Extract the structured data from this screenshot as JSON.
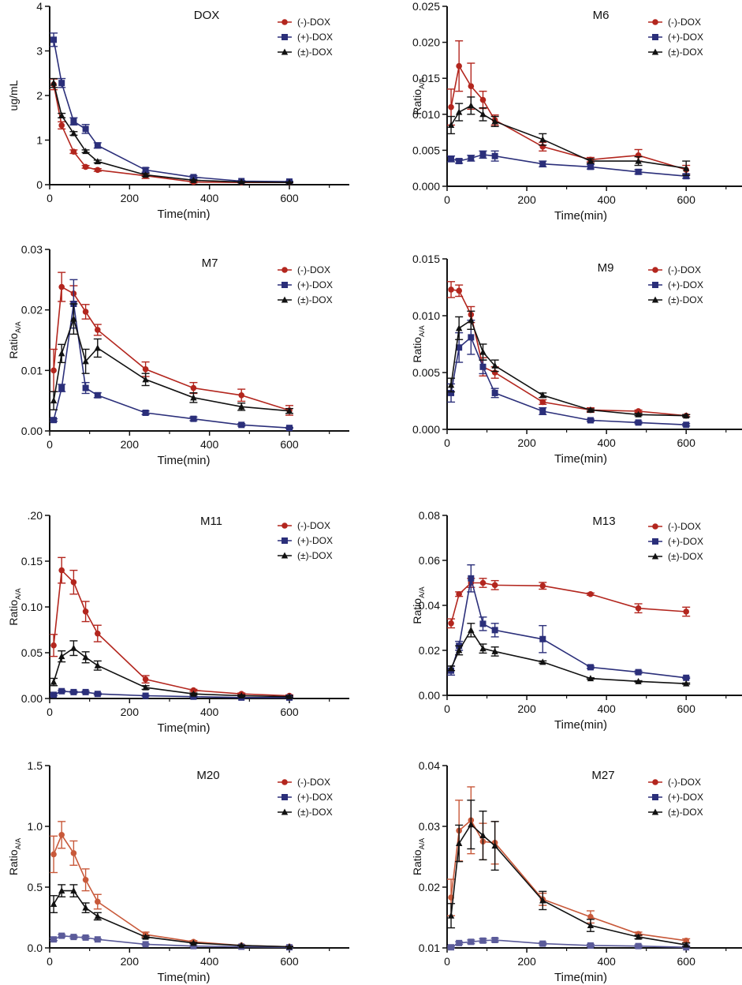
{
  "legend": [
    "(-)-DOX",
    "(+)-DOX",
    "(±)-DOX"
  ],
  "colors": {
    "minus": "#b3261e",
    "plus": "#2b2f7a",
    "racemic": "#111111",
    "minus_light": "#c8593a",
    "plus_light": "#5b5b9a"
  },
  "chart_data": [
    {
      "type": "line",
      "title": "DOX",
      "xlabel": "Time(min)",
      "ylabel": "ug/mL",
      "xlim": [
        0,
        750
      ],
      "ylim": [
        0,
        4
      ],
      "xticks": [
        "0",
        "200",
        "400",
        "600"
      ],
      "yticks": [
        "0",
        "1",
        "2",
        "3",
        "4"
      ],
      "x": [
        10,
        30,
        60,
        90,
        120,
        240,
        360,
        480,
        600
      ],
      "series": [
        {
          "name": "(-)-DOX",
          "values": [
            2.25,
            1.33,
            0.74,
            0.4,
            0.33,
            0.2,
            0.06,
            0.05,
            0.05
          ],
          "err": [
            0.12,
            0.08,
            0.04,
            0.03,
            0.03,
            0.06,
            0.02,
            0.01,
            0.01
          ]
        },
        {
          "name": "(+)-DOX",
          "values": [
            3.25,
            2.28,
            1.42,
            1.25,
            0.88,
            0.33,
            0.17,
            0.08,
            0.07
          ],
          "err": [
            0.15,
            0.1,
            0.08,
            0.1,
            0.06,
            0.05,
            0.03,
            0.01,
            0.01
          ]
        },
        {
          "name": "(±)-DOX",
          "values": [
            2.28,
            1.55,
            1.15,
            0.75,
            0.52,
            0.22,
            0.1,
            0.06,
            0.05
          ],
          "err": [
            0.1,
            0.05,
            0.04,
            0.03,
            0.03,
            0.03,
            0.01,
            0.01,
            0.01
          ]
        }
      ]
    },
    {
      "type": "line",
      "title": "M6",
      "xlabel": "Time(min)",
      "ylabel": "Ratio",
      "ylabel_sub": "A/A",
      "xlim": [
        0,
        750
      ],
      "ylim": [
        0,
        0.025
      ],
      "xticks": [
        "0",
        "200",
        "400",
        "600"
      ],
      "yticks": [
        "0.000",
        "0.005",
        "0.010",
        "0.015",
        "0.020",
        "0.025"
      ],
      "x": [
        10,
        30,
        60,
        90,
        120,
        240,
        360,
        480,
        600
      ],
      "series": [
        {
          "name": "(-)-DOX",
          "values": [
            0.011,
            0.0167,
            0.0139,
            0.012,
            0.0092,
            0.0055,
            0.0037,
            0.0043,
            0.0023
          ],
          "err": [
            0.0025,
            0.0035,
            0.0032,
            0.0012,
            0.0007,
            0.0006,
            0.0003,
            0.0008,
            0.0006
          ]
        },
        {
          "name": "(+)-DOX",
          "values": [
            0.0038,
            0.0035,
            0.0039,
            0.0044,
            0.0042,
            0.0031,
            0.0027,
            0.002,
            0.0014
          ],
          "err": [
            0.0004,
            0.0003,
            0.0004,
            0.0005,
            0.0007,
            0.0004,
            0.0003,
            0.0003,
            0.0003
          ]
        },
        {
          "name": "(±)-DOX",
          "values": [
            0.0085,
            0.0103,
            0.0112,
            0.01,
            0.009,
            0.0065,
            0.0035,
            0.0035,
            0.0025
          ],
          "err": [
            0.0012,
            0.0012,
            0.0012,
            0.0009,
            0.0007,
            0.0008,
            0.0003,
            0.0006,
            0.001
          ]
        }
      ]
    },
    {
      "type": "line",
      "title": "M7",
      "xlabel": "Time(min)",
      "ylabel": "Ratio",
      "ylabel_sub": "A/A",
      "xlim": [
        0,
        750
      ],
      "ylim": [
        0,
        0.03
      ],
      "xticks": [
        "0",
        "200",
        "400",
        "600"
      ],
      "yticks": [
        "0.00",
        "0.01",
        "0.02",
        "0.03"
      ],
      "x": [
        10,
        30,
        60,
        90,
        120,
        240,
        360,
        480,
        600
      ],
      "series": [
        {
          "name": "(-)-DOX",
          "values": [
            0.01,
            0.0238,
            0.0227,
            0.0197,
            0.0167,
            0.0102,
            0.0071,
            0.0059,
            0.0034
          ],
          "err": [
            0.0035,
            0.0024,
            0.0013,
            0.0012,
            0.0009,
            0.0012,
            0.0009,
            0.001,
            0.0008
          ]
        },
        {
          "name": "(+)-DOX",
          "values": [
            0.0018,
            0.0071,
            0.021,
            0.0071,
            0.0059,
            0.003,
            0.002,
            0.001,
            0.0005
          ],
          "err": [
            0.0002,
            0.0006,
            0.004,
            0.0009,
            0.0004,
            0.0003,
            0.0003,
            0.0002,
            0.0001
          ]
        },
        {
          "name": "(±)-DOX",
          "values": [
            0.005,
            0.0128,
            0.0185,
            0.0115,
            0.0137,
            0.0085,
            0.0055,
            0.004,
            0.0033
          ],
          "err": [
            0.0015,
            0.0015,
            0.0025,
            0.002,
            0.0015,
            0.001,
            0.0008,
            0.0006,
            0.0004
          ]
        }
      ]
    },
    {
      "type": "line",
      "title": "M9",
      "xlabel": "Time(min)",
      "ylabel": "Ratio",
      "ylabel_sub": "A/A",
      "xlim": [
        0,
        750
      ],
      "ylim": [
        0,
        0.015
      ],
      "xticks": [
        "0",
        "200",
        "400",
        "600"
      ],
      "yticks": [
        "0.000",
        "0.005",
        "0.010",
        "0.015"
      ],
      "x": [
        10,
        30,
        60,
        90,
        120,
        240,
        360,
        480,
        600
      ],
      "series": [
        {
          "name": "(-)-DOX",
          "values": [
            0.0123,
            0.0122,
            0.0101,
            0.0055,
            0.005,
            0.0024,
            0.0017,
            0.0016,
            0.0012
          ],
          "err": [
            0.0007,
            0.0005,
            0.0007,
            0.0008,
            0.0005,
            0.0002,
            0.0002,
            0.0001,
            0.0001
          ]
        },
        {
          "name": "(+)-DOX",
          "values": [
            0.0032,
            0.0072,
            0.0081,
            0.0055,
            0.0032,
            0.0016,
            0.0008,
            0.0006,
            0.0004
          ],
          "err": [
            0.0008,
            0.0013,
            0.0015,
            0.0006,
            0.0004,
            0.0003,
            0.0001,
            0.0001,
            0.0001
          ]
        },
        {
          "name": "(±)-DOX",
          "values": [
            0.0039,
            0.0089,
            0.0096,
            0.0068,
            0.0056,
            0.003,
            0.0017,
            0.0013,
            0.0012
          ],
          "err": [
            0.0006,
            0.001,
            0.0008,
            0.0007,
            0.0005,
            0.0002,
            0.0001,
            0.0001,
            0.0001
          ]
        }
      ]
    },
    {
      "type": "line",
      "title": "M11",
      "xlabel": "Time(min)",
      "ylabel": "Ratio",
      "ylabel_sub": "A/A",
      "xlim": [
        0,
        750
      ],
      "ylim": [
        0,
        0.2
      ],
      "xticks": [
        "0",
        "200",
        "400",
        "600"
      ],
      "yticks": [
        "0.00",
        "0.05",
        "0.10",
        "0.15",
        ".20"
      ],
      "x": [
        10,
        30,
        60,
        90,
        120,
        240,
        360,
        480,
        600
      ],
      "series": [
        {
          "name": "(-)-DOX",
          "values": [
            0.058,
            0.14,
            0.127,
            0.095,
            0.071,
            0.021,
            0.009,
            0.005,
            0.003
          ],
          "err": [
            0.012,
            0.014,
            0.013,
            0.011,
            0.009,
            0.004,
            0.001,
            0.001,
            0.001
          ]
        },
        {
          "name": "(+)-DOX",
          "values": [
            0.004,
            0.008,
            0.007,
            0.007,
            0.005,
            0.003,
            0.002,
            0.001,
            0.001
          ],
          "err": [
            0.001,
            0.001,
            0.001,
            0.001,
            0.001,
            0.0005,
            0.0005,
            0.0003,
            0.0003
          ]
        },
        {
          "name": "(±)-DOX",
          "values": [
            0.018,
            0.046,
            0.055,
            0.045,
            0.036,
            0.012,
            0.005,
            0.003,
            0.002
          ],
          "err": [
            0.004,
            0.006,
            0.008,
            0.006,
            0.005,
            0.002,
            0.001,
            0.001,
            0.001
          ]
        }
      ]
    },
    {
      "type": "line",
      "title": "M13",
      "xlabel": "Time(min)",
      "ylabel": "Ratio",
      "ylabel_sub": "A/A",
      "xlim": [
        0,
        750
      ],
      "ylim": [
        0,
        0.08
      ],
      "xticks": [
        "0",
        "200",
        "400",
        "600"
      ],
      "yticks": [
        "0.00",
        "0.02",
        "0.04",
        "0.06",
        "0.08"
      ],
      "x": [
        10,
        30,
        60,
        90,
        120,
        240,
        360,
        480,
        600
      ],
      "series": [
        {
          "name": "(-)-DOX",
          "values": [
            0.032,
            0.045,
            0.05,
            0.05,
            0.049,
            0.0487,
            0.045,
            0.0387,
            0.0372
          ],
          "err": [
            0.002,
            0.001,
            0.002,
            0.002,
            0.002,
            0.0015,
            0.0005,
            0.002,
            0.002
          ]
        },
        {
          "name": "(+)-DOX",
          "values": [
            0.011,
            0.022,
            0.052,
            0.0318,
            0.029,
            0.025,
            0.0125,
            0.0103,
            0.0078
          ],
          "err": [
            0.002,
            0.002,
            0.006,
            0.003,
            0.003,
            0.006,
            0.0005,
            0.0005,
            0.0003
          ]
        },
        {
          "name": "(±)-DOX",
          "values": [
            0.012,
            0.02,
            0.029,
            0.0208,
            0.0195,
            0.0148,
            0.0075,
            0.0062,
            0.0052
          ],
          "err": [
            0.001,
            0.002,
            0.003,
            0.002,
            0.002,
            0.0005,
            0.0003,
            0.0003,
            0.0003
          ]
        }
      ]
    },
    {
      "type": "line",
      "title": "M20",
      "xlabel": "Time(min)",
      "ylabel": "Ratio",
      "ylabel_sub": "A/A",
      "xlim": [
        0,
        750
      ],
      "ylim": [
        0,
        1.5
      ],
      "xticks": [
        "0",
        "200",
        "400",
        "600"
      ],
      "yticks": [
        "0.0",
        "0.5",
        "1.0",
        "1.5"
      ],
      "x": [
        10,
        30,
        60,
        90,
        120,
        240,
        360,
        480,
        600
      ],
      "series": [
        {
          "name": "(-)-DOX",
          "values": [
            0.77,
            0.93,
            0.78,
            0.56,
            0.38,
            0.11,
            0.05,
            0.02,
            0.01
          ],
          "err": [
            0.15,
            0.11,
            0.1,
            0.09,
            0.06,
            0.02,
            0.01,
            0.005,
            0.005
          ]
        },
        {
          "name": "(+)-DOX",
          "values": [
            0.07,
            0.1,
            0.09,
            0.085,
            0.07,
            0.03,
            0.015,
            0.01,
            0.005
          ],
          "err": [
            0.01,
            0.01,
            0.01,
            0.01,
            0.005,
            0.005,
            0.003,
            0.002,
            0.002
          ]
        },
        {
          "name": "(±)-DOX",
          "values": [
            0.36,
            0.47,
            0.47,
            0.33,
            0.26,
            0.09,
            0.04,
            0.02,
            0.01
          ],
          "err": [
            0.07,
            0.05,
            0.05,
            0.04,
            0.03,
            0.01,
            0.005,
            0.003,
            0.002
          ]
        }
      ]
    },
    {
      "type": "line",
      "title": "M27",
      "xlabel": "Time(min)",
      "ylabel": "Ratio",
      "ylabel_sub": "A/A",
      "xlim": [
        0,
        750
      ],
      "ylim": [
        0.01,
        0.04
      ],
      "xticks": [
        "0",
        "200",
        "400",
        "600"
      ],
      "yticks": [
        "0.01",
        "0.02",
        "0.03",
        "0.04"
      ],
      "x": [
        10,
        30,
        60,
        90,
        120,
        240,
        360,
        480,
        600
      ],
      "series": [
        {
          "name": "(-)-DOX",
          "values": [
            0.0183,
            0.0293,
            0.031,
            0.0275,
            0.0273,
            0.018,
            0.0151,
            0.0123,
            0.0112
          ],
          "err": [
            0.003,
            0.005,
            0.0055,
            0.003,
            0.0035,
            0.001,
            0.001,
            0.0003,
            0.0003
          ]
        },
        {
          "name": "(+)-DOX",
          "values": [
            0.0101,
            0.0108,
            0.011,
            0.0112,
            0.0113,
            0.0107,
            0.0104,
            0.0103,
            0.0101
          ],
          "err": [
            0.0002,
            0.0002,
            0.0003,
            0.0003,
            0.0003,
            0.0002,
            0.0002,
            0.0002,
            0.0002
          ]
        },
        {
          "name": "(±)-DOX",
          "values": [
            0.0153,
            0.0272,
            0.0303,
            0.0285,
            0.0268,
            0.0178,
            0.0137,
            0.0118,
            0.0105
          ],
          "err": [
            0.002,
            0.003,
            0.004,
            0.004,
            0.004,
            0.0015,
            0.001,
            0.0003,
            0.0003
          ]
        }
      ]
    }
  ]
}
